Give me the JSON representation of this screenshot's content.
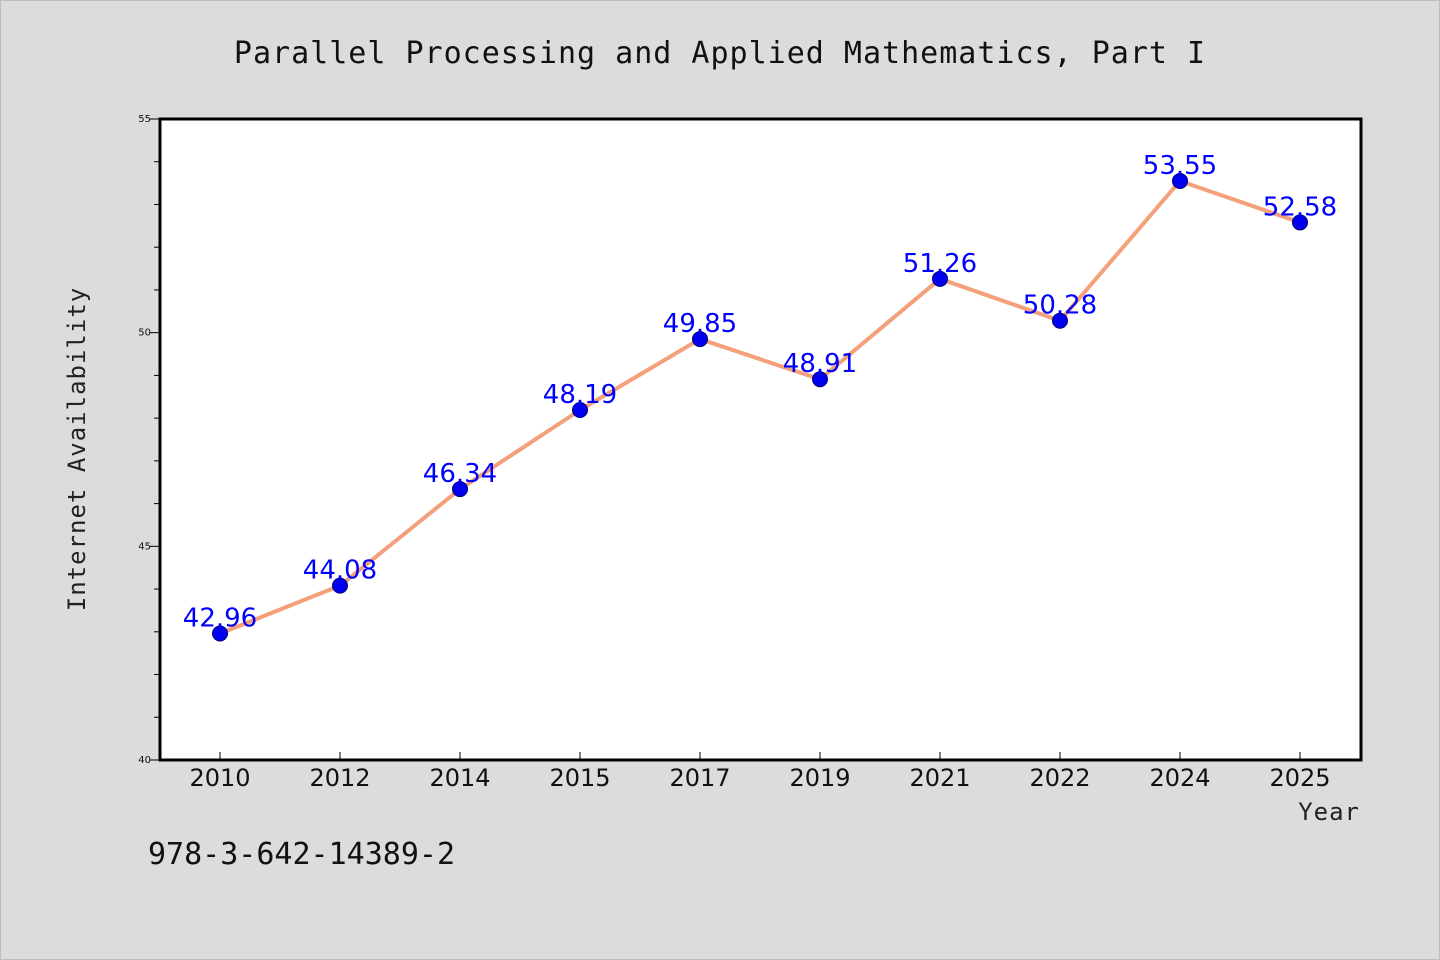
{
  "chart_data": {
    "type": "line",
    "title": "Parallel Processing and Applied Mathematics, Part I",
    "xlabel": "Year",
    "ylabel": "Internet Availability",
    "categories": [
      "2010",
      "2012",
      "2014",
      "2015",
      "2017",
      "2019",
      "2021",
      "2022",
      "2024",
      "2025"
    ],
    "series": [
      {
        "values": [
          42.96,
          44.08,
          46.34,
          48.19,
          49.85,
          48.91,
          51.26,
          50.28,
          53.55,
          52.58
        ],
        "line_color": "#f4a07a",
        "marker_color": "#0000ee",
        "label_color": "#0000ff"
      }
    ],
    "data_labels": [
      "42.96",
      "44.08",
      "46.34",
      "48.19",
      "49.85",
      "48.91",
      "51.26",
      "50.28",
      "53.55",
      "52.58"
    ],
    "ylim": [
      40,
      55
    ],
    "yticks": [
      "40",
      "45",
      "50",
      "55"
    ],
    "grid": false,
    "legend": "none"
  },
  "annotation": "978-3-642-14389-2"
}
